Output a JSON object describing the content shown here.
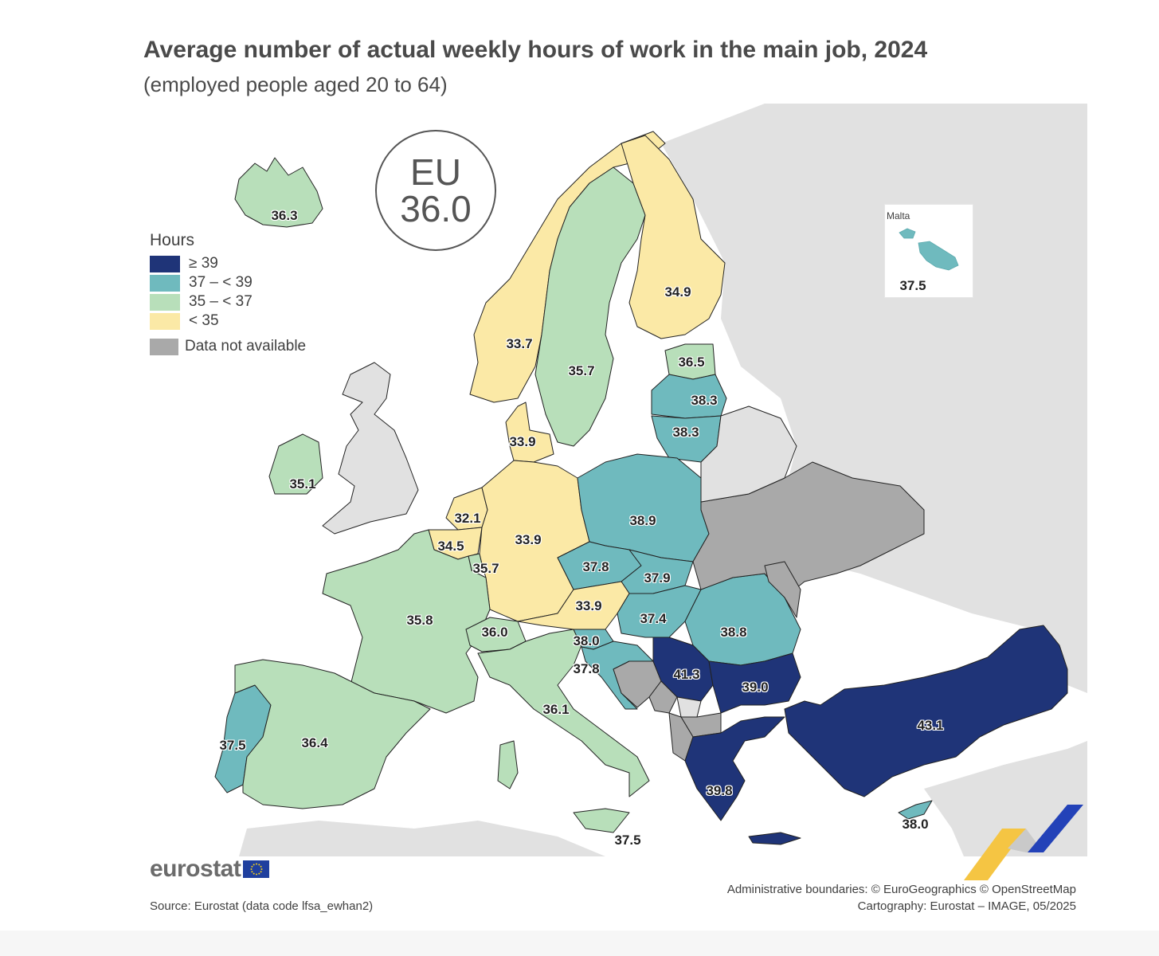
{
  "title": "Average number of actual weekly hours of work in the main job, 2024",
  "subtitle": "(employed people aged 20 to 64)",
  "eu_badge": {
    "label": "EU",
    "value": "36.0"
  },
  "legend": {
    "title": "Hours",
    "items": [
      {
        "label": "≥ 39",
        "color": "#1f3478"
      },
      {
        "label": "37 – < 39",
        "color": "#6fbabe"
      },
      {
        "label": "35 – < 37",
        "color": "#b8dfba"
      },
      {
        "label": "< 35",
        "color": "#fbe9a6"
      }
    ],
    "not_available": {
      "label": "Data not available",
      "color": "#a9a9a9"
    }
  },
  "map_colors": {
    "non_eu_land": "#e1e1e1",
    "sea": "#ffffff",
    "border": "#222222"
  },
  "countries": [
    {
      "name": "Iceland",
      "value": "36.3",
      "class": "35 – < 37"
    },
    {
      "name": "Norway",
      "value": "33.7",
      "class": "< 35"
    },
    {
      "name": "Sweden",
      "value": "35.7",
      "class": "35 – < 37"
    },
    {
      "name": "Finland",
      "value": "34.9",
      "class": "< 35"
    },
    {
      "name": "Estonia",
      "value": "36.5",
      "class": "35 – < 37"
    },
    {
      "name": "Latvia",
      "value": "38.3",
      "class": "37 – < 39"
    },
    {
      "name": "Lithuania",
      "value": "38.3",
      "class": "37 – < 39"
    },
    {
      "name": "Denmark",
      "value": "33.9",
      "class": "< 35"
    },
    {
      "name": "Ireland",
      "value": "35.1",
      "class": "35 – < 37"
    },
    {
      "name": "Netherlands",
      "value": "32.1",
      "class": "< 35"
    },
    {
      "name": "Belgium",
      "value": "34.5",
      "class": "< 35"
    },
    {
      "name": "Luxembourg",
      "value": "35.7",
      "class": "35 – < 37"
    },
    {
      "name": "Germany",
      "value": "33.9",
      "class": "< 35"
    },
    {
      "name": "Poland",
      "value": "38.9",
      "class": "37 – < 39"
    },
    {
      "name": "Czechia",
      "value": "37.8",
      "class": "37 – < 39"
    },
    {
      "name": "Slovakia",
      "value": "37.9",
      "class": "37 – < 39"
    },
    {
      "name": "Austria",
      "value": "33.9",
      "class": "< 35"
    },
    {
      "name": "Hungary",
      "value": "37.4",
      "class": "37 – < 39"
    },
    {
      "name": "Romania",
      "value": "38.8",
      "class": "37 – < 39"
    },
    {
      "name": "France",
      "value": "35.8",
      "class": "35 – < 37"
    },
    {
      "name": "Switzerland",
      "value": "36.0",
      "class": "35 – < 37"
    },
    {
      "name": "Slovenia",
      "value": "38.0",
      "class": "37 – < 39"
    },
    {
      "name": "Croatia",
      "value": "37.8",
      "class": "37 – < 39"
    },
    {
      "name": "Serbia",
      "value": "41.3",
      "class": "≥ 39"
    },
    {
      "name": "Bulgaria",
      "value": "39.0",
      "class": "≥ 39"
    },
    {
      "name": "Italy",
      "value": "36.1",
      "class": "35 – < 37"
    },
    {
      "name": "Portugal",
      "value": "37.5",
      "class": "37 – < 39"
    },
    {
      "name": "Spain",
      "value": "36.4",
      "class": "35 – < 37"
    },
    {
      "name": "Greece",
      "value": "39.8",
      "class": "≥ 39"
    },
    {
      "name": "Türkiye",
      "value": "43.1",
      "class": "≥ 39"
    },
    {
      "name": "Cyprus",
      "value": "38.0",
      "class": "37 – < 39"
    },
    {
      "name": "Malta",
      "value": "37.5",
      "class": "37 – < 39"
    }
  ],
  "malta_inset": {
    "label": "Malta"
  },
  "brand": {
    "name": "eurostat"
  },
  "source": "Source: Eurostat (data code lfsa_ewhan2)",
  "credits": [
    "Administrative boundaries: © EuroGeographics © OpenStreetMap",
    "Cartography: Eurostat – IMAGE, 05/2025"
  ]
}
